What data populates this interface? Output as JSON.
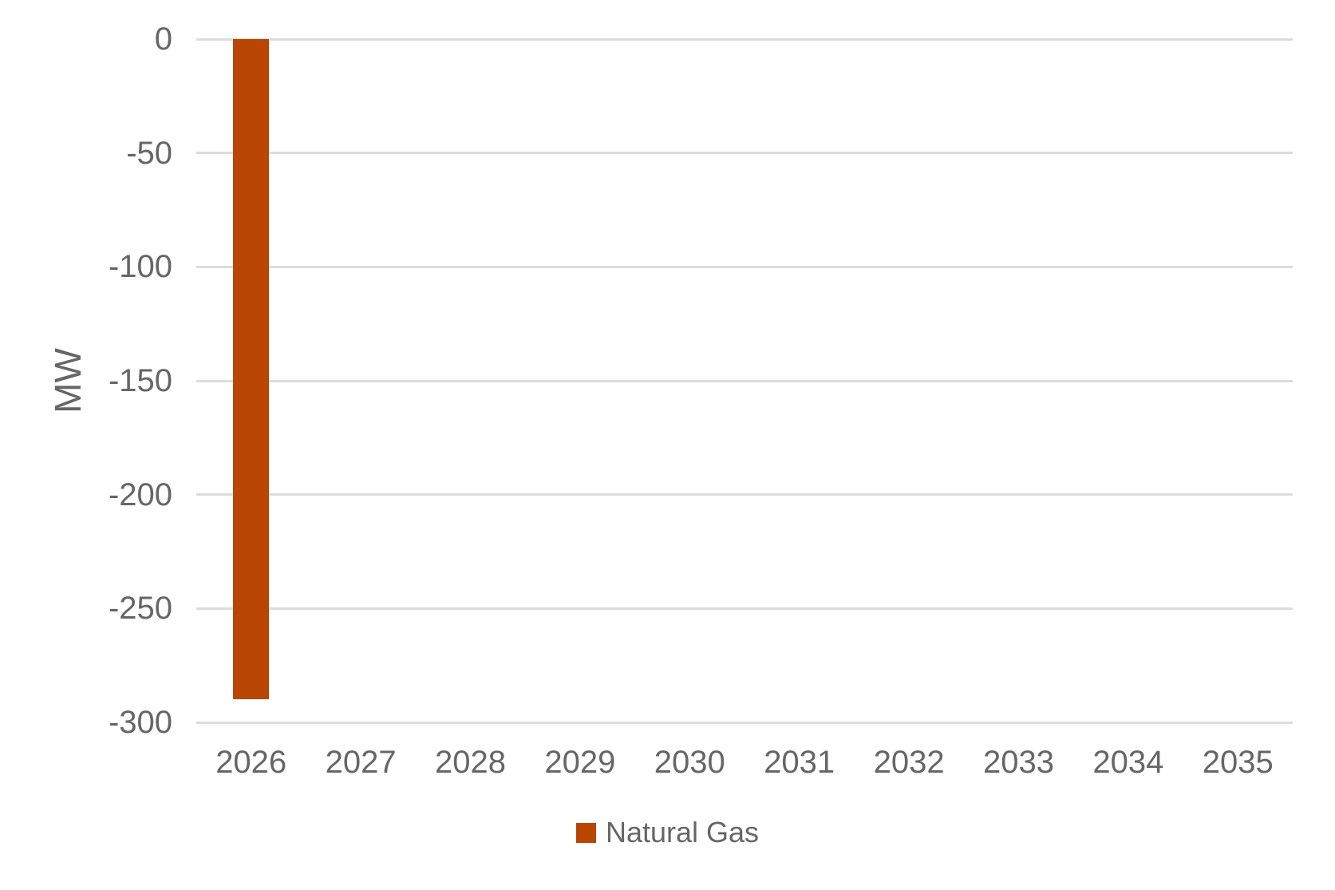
{
  "chart_data": {
    "type": "bar",
    "title": "",
    "xlabel": "",
    "ylabel": "MW",
    "categories": [
      "2026",
      "2027",
      "2028",
      "2029",
      "2030",
      "2031",
      "2032",
      "2033",
      "2034",
      "2035"
    ],
    "series": [
      {
        "name": "Natural Gas",
        "color": "#b94602",
        "values": [
          -290,
          null,
          null,
          null,
          null,
          null,
          null,
          null,
          null,
          null
        ]
      }
    ],
    "ylim": [
      -300,
      0
    ],
    "yticks": [
      0,
      -50,
      -100,
      -150,
      -200,
      -250,
      -300
    ],
    "grid": "horizontal-only",
    "legend_position": "bottom-center",
    "colors": {
      "text": "#666666",
      "gridline": "#dcdcdc",
      "background": "#ffffff"
    }
  }
}
